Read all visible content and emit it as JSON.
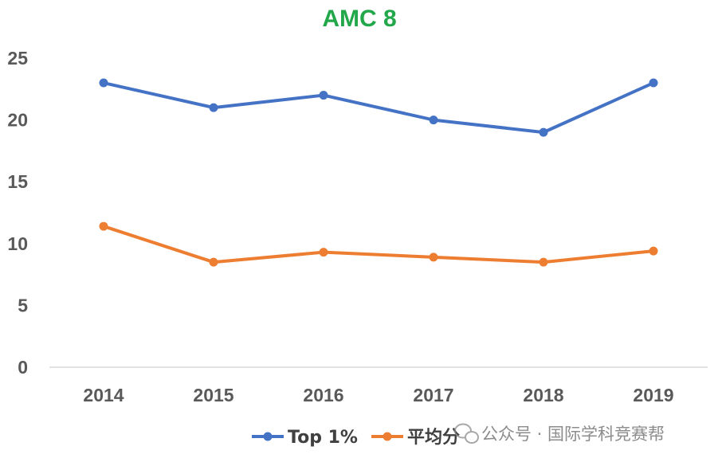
{
  "colors": {
    "title": "#22a84a",
    "series_top": "#4472c4",
    "series_avg": "#ed7d31",
    "axis": "#d9d9d9",
    "tick_text": "#595959",
    "watermark": "#8c8c8c"
  },
  "watermark": {
    "icon": "wechat-icon",
    "text": "公众号 · 国际学科竞赛帮"
  },
  "chart_data": {
    "type": "line",
    "title": "AMC 8",
    "xlabel": "",
    "ylabel": "",
    "categories": [
      "2014",
      "2015",
      "2016",
      "2017",
      "2018",
      "2019"
    ],
    "ylim": [
      0,
      25
    ],
    "yticks": [
      "0",
      "5",
      "10",
      "15",
      "20",
      "25"
    ],
    "grid": false,
    "legend_position": "bottom",
    "series": [
      {
        "name": "Top 1%",
        "color": "#4472c4",
        "values": [
          23,
          21,
          22,
          20,
          19,
          23
        ]
      },
      {
        "name": "平均分",
        "color": "#ed7d31",
        "values": [
          11.4,
          8.5,
          9.3,
          8.9,
          8.5,
          9.4
        ]
      }
    ]
  }
}
